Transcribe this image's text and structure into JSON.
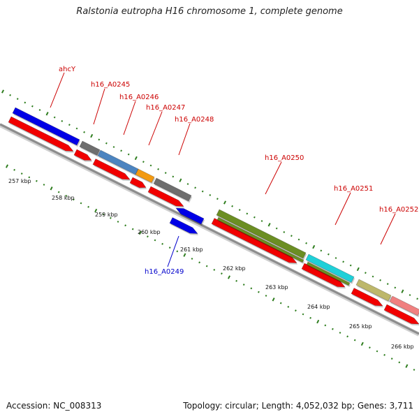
{
  "title": "Ralstonia eutropha H16 chromosome 1, complete genome",
  "footer": {
    "accession_label": "Accession:",
    "accession_value": "NC_008313",
    "topology_label": "Topology:",
    "topology_value": "circular;",
    "length_label": "Length:",
    "length_value": "4,052,032 bp;",
    "genes_label": "Genes:",
    "genes_value": "3,711"
  },
  "scale_ticks": [
    "257 kbp",
    "258 kbp",
    "259 kbp",
    "260 kbp",
    "261 kbp",
    "262 kbp",
    "263 kbp",
    "264 kbp",
    "265 kbp",
    "266 kbp"
  ],
  "gene_labels": [
    {
      "text": "ahcY",
      "color": "#cc0000"
    },
    {
      "text": "h16_A0245",
      "color": "#cc0000"
    },
    {
      "text": "h16_A0246",
      "color": "#cc0000"
    },
    {
      "text": "h16_A0247",
      "color": "#cc0000"
    },
    {
      "text": "h16_A0248",
      "color": "#cc0000"
    },
    {
      "text": "h16_A0249",
      "color": "#0000cc"
    },
    {
      "text": "h16_A0250",
      "color": "#cc0000"
    },
    {
      "text": "h16_A0251",
      "color": "#cc0000"
    },
    {
      "text": "h16_A0252",
      "color": "#cc0000"
    }
  ],
  "colors": {
    "backbone": "#8c8c8c",
    "tick": "#2e7d1e",
    "cds_red": "#f10000",
    "blue": "#0000e6",
    "gray": "#6e6e6e",
    "steel": "#4c84c0",
    "orange": "#f39a12",
    "olive": "#6b8e23",
    "cyan": "#1fd0d8",
    "khaki": "#bdb76b",
    "salmon": "#f08080"
  }
}
